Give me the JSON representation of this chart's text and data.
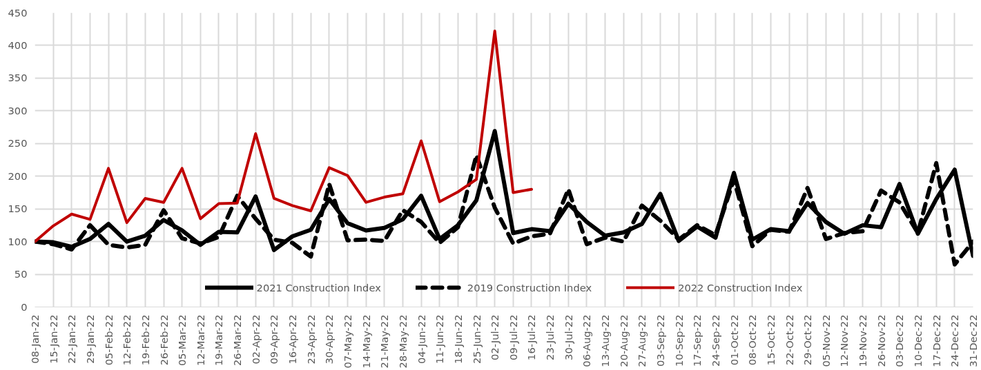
{
  "chart_data": {
    "type": "line",
    "categories": [
      "08-Jan-22",
      "15-Jan-22",
      "22-Jan-22",
      "29-Jan-22",
      "05-Feb-22",
      "12-Feb-22",
      "19-Feb-22",
      "26-Feb-22",
      "05-Mar-22",
      "12-Mar-22",
      "19-Mar-22",
      "26-Mar-22",
      "02-Apr-22",
      "09-Apr-22",
      "16-Apr-22",
      "23-Apr-22",
      "30-Apr-22",
      "07-May-22",
      "14-May-22",
      "21-May-22",
      "28-May-22",
      "04-Jun-22",
      "11-Jun-22",
      "18-Jun-22",
      "25-Jun-22",
      "02-Jul-22",
      "09-Jul-22",
      "16-Jul-22",
      "23-Jul-22",
      "30-Jul-22",
      "06-Aug-22",
      "13-Aug-22",
      "20-Aug-22",
      "27-Aug-22",
      "03-Sep-22",
      "10-Sep-22",
      "17-Sep-22",
      "24-Sep-22",
      "01-Oct-22",
      "08-Oct-22",
      "15-Oct-22",
      "22-Oct-22",
      "29-Oct-22",
      "05-Nov-22",
      "12-Nov-22",
      "19-Nov-22",
      "26-Nov-22",
      "03-Dec-22",
      "10-Dec-22",
      "17-Dec-22",
      "24-Dec-22",
      "31-Dec-22"
    ],
    "series": [
      {
        "name": "2021 Construction Index",
        "color": "#000000",
        "line_style": "solid",
        "values": [
          100,
          99,
          92,
          104,
          127,
          100,
          109,
          133,
          117,
          95,
          115,
          114,
          169,
          87,
          108,
          118,
          165,
          128,
          117,
          121,
          134,
          170,
          104,
          125,
          163,
          269,
          113,
          119,
          116,
          158,
          130,
          109,
          114,
          127,
          173,
          101,
          123,
          106,
          205,
          103,
          119,
          116,
          159,
          130,
          112,
          125,
          122,
          188,
          112,
          165,
          210,
          78
        ]
      },
      {
        "name": "2019 Construction Index",
        "color": "#000000",
        "line_style": "dashed",
        "values": [
          100,
          96,
          88,
          125,
          95,
          91,
          95,
          148,
          105,
          97,
          107,
          170,
          135,
          103,
          98,
          77,
          188,
          102,
          103,
          101,
          148,
          130,
          98,
          122,
          232,
          152,
          97,
          108,
          112,
          180,
          96,
          106,
          100,
          155,
          132,
          103,
          125,
          110,
          195,
          93,
          118,
          115,
          182,
          104,
          113,
          116,
          178,
          160,
          113,
          220,
          65,
          100
        ]
      },
      {
        "name": "2022 Construction Index",
        "color": "#c00000",
        "line_style": "solid",
        "values": [
          100,
          124,
          142,
          134,
          212,
          129,
          166,
          160,
          212,
          135,
          158,
          159,
          265,
          166,
          155,
          147,
          213,
          201,
          160,
          168,
          173,
          254,
          161,
          176,
          195,
          422,
          175,
          180,
          null,
          null,
          null,
          null,
          null,
          null,
          null,
          null,
          null,
          null,
          null,
          null,
          null,
          null,
          null,
          null,
          null,
          null,
          null,
          null,
          null,
          null,
          null,
          null
        ]
      }
    ],
    "ylim": [
      0,
      450
    ],
    "yticks": [
      0,
      50,
      100,
      150,
      200,
      250,
      300,
      350,
      400,
      450
    ],
    "grid": true,
    "legend": "bottom"
  }
}
